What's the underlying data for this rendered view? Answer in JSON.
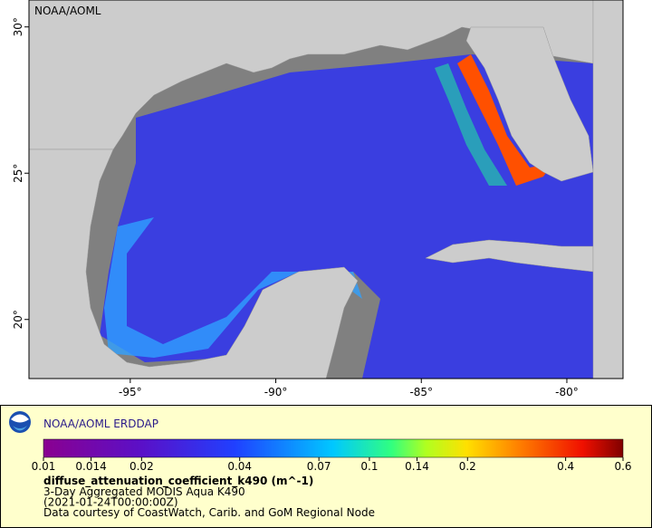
{
  "map": {
    "title": "NOAA/AOML",
    "xlim": [
      -98.48,
      -78.07
    ],
    "ylim": [
      17.98,
      30.92
    ],
    "xticks": [
      {
        "value": -95,
        "label": "-95°"
      },
      {
        "value": -90,
        "label": "-90°"
      },
      {
        "value": -85,
        "label": "-85°"
      },
      {
        "value": -80,
        "label": "-80°"
      }
    ],
    "yticks": [
      {
        "value": 20,
        "label": "20°"
      },
      {
        "value": 25,
        "label": "25°"
      },
      {
        "value": 30,
        "label": "30°"
      }
    ]
  },
  "legend": {
    "title": "NOAA/AOML ERDDAP",
    "colorbar": {
      "lim": [
        0.01,
        0.6
      ],
      "log": true,
      "ticks": [
        0.01,
        0.014,
        0.02,
        0.04,
        0.07,
        0.1,
        0.14,
        0.2,
        0.4,
        0.6
      ]
    },
    "variable": "diffuse_attenuation_coefficient_k490 (m^-1)",
    "lines": [
      "3-Day Aggregated MODIS Aqua K490",
      "(2021-01-24T00:00:00Z)",
      "Data courtesy of CoastWatch, Carib. and GoM Regional Node"
    ]
  }
}
